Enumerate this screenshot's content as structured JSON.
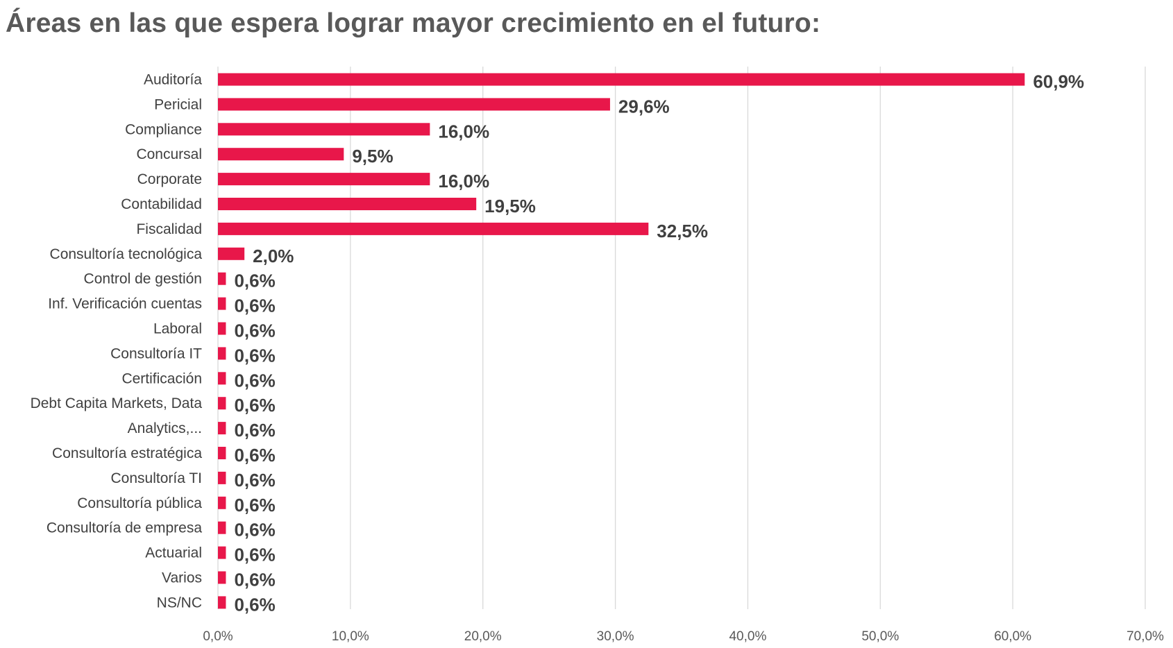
{
  "chart_data": {
    "type": "bar",
    "orientation": "horizontal",
    "title": "Áreas en las que espera lograr mayor crecimiento en el futuro:",
    "categories": [
      "Auditoría",
      "Pericial",
      "Compliance",
      "Concursal",
      "Corporate",
      "Contabilidad",
      "Fiscalidad",
      "Consultoría tecnológica",
      "Control de gestión",
      "Inf. Verificación cuentas",
      "Laboral",
      "Consultoría IT",
      "Certificación",
      "Debt Capita Markets, Data",
      "Analytics,...",
      "Consultoría estratégica",
      "Consultoría TI",
      "Consultoría pública",
      "Consultoría de empresa",
      "Actuarial",
      "Varios",
      "NS/NC"
    ],
    "values": [
      60.9,
      29.6,
      16.0,
      9.5,
      16.0,
      19.5,
      32.5,
      2.0,
      0.6,
      0.6,
      0.6,
      0.6,
      0.6,
      0.6,
      0.6,
      0.6,
      0.6,
      0.6,
      0.6,
      0.6,
      0.6,
      0.6
    ],
    "data_labels": [
      "60,9%",
      "29,6%",
      "16,0%",
      "9,5%",
      "16,0%",
      "19,5%",
      "32,5%",
      "2,0%",
      "0,6%",
      "0,6%",
      "0,6%",
      "0,6%",
      "0,6%",
      "0,6%",
      "0,6%",
      "0,6%",
      "0,6%",
      "0,6%",
      "0,6%",
      "0,6%",
      "0,6%",
      "0,6%"
    ],
    "xlim": [
      0,
      70
    ],
    "xticks": [
      0,
      10,
      20,
      30,
      40,
      50,
      60,
      70
    ],
    "xtick_labels": [
      "0,0%",
      "10,0%",
      "20,0%",
      "30,0%",
      "40,0%",
      "50,0%",
      "60,0%",
      "70,0%"
    ],
    "grid": true,
    "legend": "none",
    "bar_color": "#e8174a",
    "text_color": "#404040"
  }
}
